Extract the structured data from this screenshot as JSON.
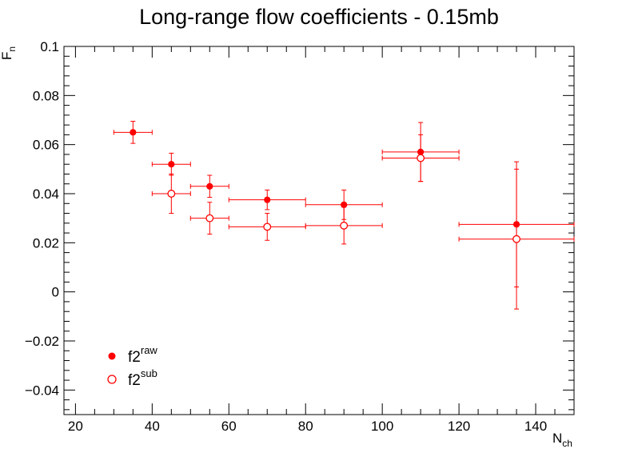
{
  "chart_data": {
    "type": "scatter",
    "title": "Long-range flow coefficients - 0.15mb",
    "xlabel": {
      "main": "N",
      "sub": "ch"
    },
    "ylabel": {
      "main": "F",
      "sub": "n"
    },
    "xlim": [
      17,
      150
    ],
    "ylim": [
      -0.05,
      0.1
    ],
    "x_ticks": [
      20,
      40,
      60,
      80,
      100,
      120,
      140
    ],
    "x_tick_labels": [
      "20",
      "40",
      "60",
      "80",
      "100",
      "120",
      "140"
    ],
    "y_ticks": [
      -0.04,
      -0.02,
      0,
      0.02,
      0.04,
      0.06,
      0.08,
      0.1
    ],
    "y_tick_labels": [
      "−0.04",
      "−0.02",
      "0",
      "0.02",
      "0.04",
      "0.06",
      "0.08",
      "0.1"
    ],
    "grid": false,
    "legend_position": "bottom-left",
    "series": [
      {
        "name": "f2",
        "name_sup": "raw",
        "marker": "filled-circle",
        "color": "#ff0000",
        "points": [
          {
            "x": 35,
            "xerr": 5,
            "y": 0.065,
            "yerr": 0.0045
          },
          {
            "x": 45,
            "xerr": 5,
            "y": 0.052,
            "yerr": 0.0045
          },
          {
            "x": 55,
            "xerr": 5,
            "y": 0.043,
            "yerr": 0.0045
          },
          {
            "x": 70,
            "xerr": 10,
            "y": 0.0375,
            "yerr": 0.004
          },
          {
            "x": 90,
            "xerr": 10,
            "y": 0.0355,
            "yerr": 0.006
          },
          {
            "x": 110,
            "xerr": 10,
            "y": 0.057,
            "yerr": 0.012
          },
          {
            "x": 135,
            "xerr": 15,
            "y": 0.0275,
            "yerr": 0.0255
          }
        ]
      },
      {
        "name": "f2",
        "name_sup": "sub",
        "marker": "open-circle",
        "color": "#ff0000",
        "points": [
          {
            "x": 45,
            "xerr": 5,
            "y": 0.04,
            "yerr": 0.008
          },
          {
            "x": 55,
            "xerr": 5,
            "y": 0.03,
            "yerr": 0.0065
          },
          {
            "x": 70,
            "xerr": 10,
            "y": 0.0265,
            "yerr": 0.0055
          },
          {
            "x": 90,
            "xerr": 10,
            "y": 0.027,
            "yerr": 0.0075
          },
          {
            "x": 110,
            "xerr": 10,
            "y": 0.0545,
            "yerr": 0.0095
          },
          {
            "x": 135,
            "xerr": 15,
            "y": 0.0215,
            "yerr": 0.0285
          }
        ]
      }
    ]
  }
}
